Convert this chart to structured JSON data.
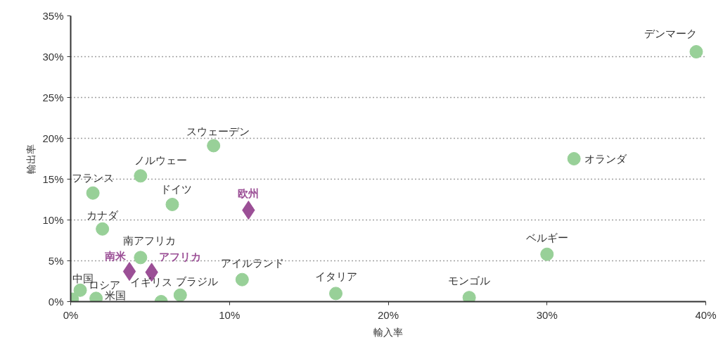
{
  "chart_data": {
    "type": "scatter",
    "xlabel": "輸入率",
    "ylabel": "輸出率",
    "xlim": [
      0,
      40
    ],
    "ylim": [
      0,
      35
    ],
    "xticks": [
      {
        "value": 0,
        "label": "0%"
      },
      {
        "value": 10,
        "label": "10%"
      },
      {
        "value": 20,
        "label": "20%"
      },
      {
        "value": 30,
        "label": "30%"
      },
      {
        "value": 40,
        "label": "40%"
      }
    ],
    "yticks": [
      {
        "value": 0,
        "label": "0%"
      },
      {
        "value": 5,
        "label": "5%"
      },
      {
        "value": 10,
        "label": "10%"
      },
      {
        "value": 15,
        "label": "15%"
      },
      {
        "value": 20,
        "label": "20%"
      },
      {
        "value": 25,
        "label": "25%"
      },
      {
        "value": 30,
        "label": "30%"
      },
      {
        "value": 35,
        "label": "35%"
      }
    ],
    "grid": "y",
    "series": [
      {
        "color": "#98d098",
        "marker": "circle",
        "x": [
          0.1,
          0.6,
          1.6,
          1.4,
          2.0,
          4.4,
          4.4,
          5.7,
          6.9,
          6.4,
          9.0,
          10.8,
          16.7,
          25.1,
          30.0,
          31.7,
          39.4
        ],
        "values": [
          0.3,
          1.4,
          0.4,
          13.3,
          8.9,
          15.4,
          5.4,
          0.0,
          0.8,
          11.9,
          19.1,
          2.7,
          1.0,
          0.5,
          5.8,
          17.5,
          30.6
        ]
      },
      {
        "color": "#9b4f96",
        "marker": "diamond",
        "x": [
          3.7,
          5.1,
          11.2
        ],
        "values": [
          3.7,
          3.6,
          11.2
        ]
      }
    ],
    "annotations": [
      {
        "text": "中国",
        "x": 0.1,
        "y": 0.3
      },
      {
        "text": "ロシア",
        "x": 0.6,
        "y": 1.4
      },
      {
        "text": "米国",
        "x": 1.6,
        "y": 0.4
      },
      {
        "text": "フランス",
        "x": 1.4,
        "y": 13.3
      },
      {
        "text": "カナダ",
        "x": 2.0,
        "y": 8.9
      },
      {
        "text": "ノルウェー",
        "x": 4.4,
        "y": 15.4
      },
      {
        "text": "南アフリカ",
        "x": 4.4,
        "y": 5.4
      },
      {
        "text": "イギリス",
        "x": 5.7,
        "y": 0.0
      },
      {
        "text": "ブラジル",
        "x": 6.9,
        "y": 0.8
      },
      {
        "text": "ドイツ",
        "x": 6.4,
        "y": 11.9
      },
      {
        "text": "スウェーデン",
        "x": 9.0,
        "y": 19.1
      },
      {
        "text": "アイルランド",
        "x": 10.8,
        "y": 2.7
      },
      {
        "text": "イタリア",
        "x": 16.7,
        "y": 1.0
      },
      {
        "text": "モンゴル",
        "x": 25.1,
        "y": 0.5
      },
      {
        "text": "ベルギー",
        "x": 30.0,
        "y": 5.8
      },
      {
        "text": "オランダ",
        "x": 31.7,
        "y": 17.5
      },
      {
        "text": "デンマーク",
        "x": 39.4,
        "y": 30.6
      },
      {
        "text": "南米",
        "x": 3.7,
        "y": 3.7
      },
      {
        "text": "アフリカ",
        "x": 5.1,
        "y": 3.6
      },
      {
        "text": "欧州",
        "x": 11.2,
        "y": 11.2
      }
    ]
  }
}
